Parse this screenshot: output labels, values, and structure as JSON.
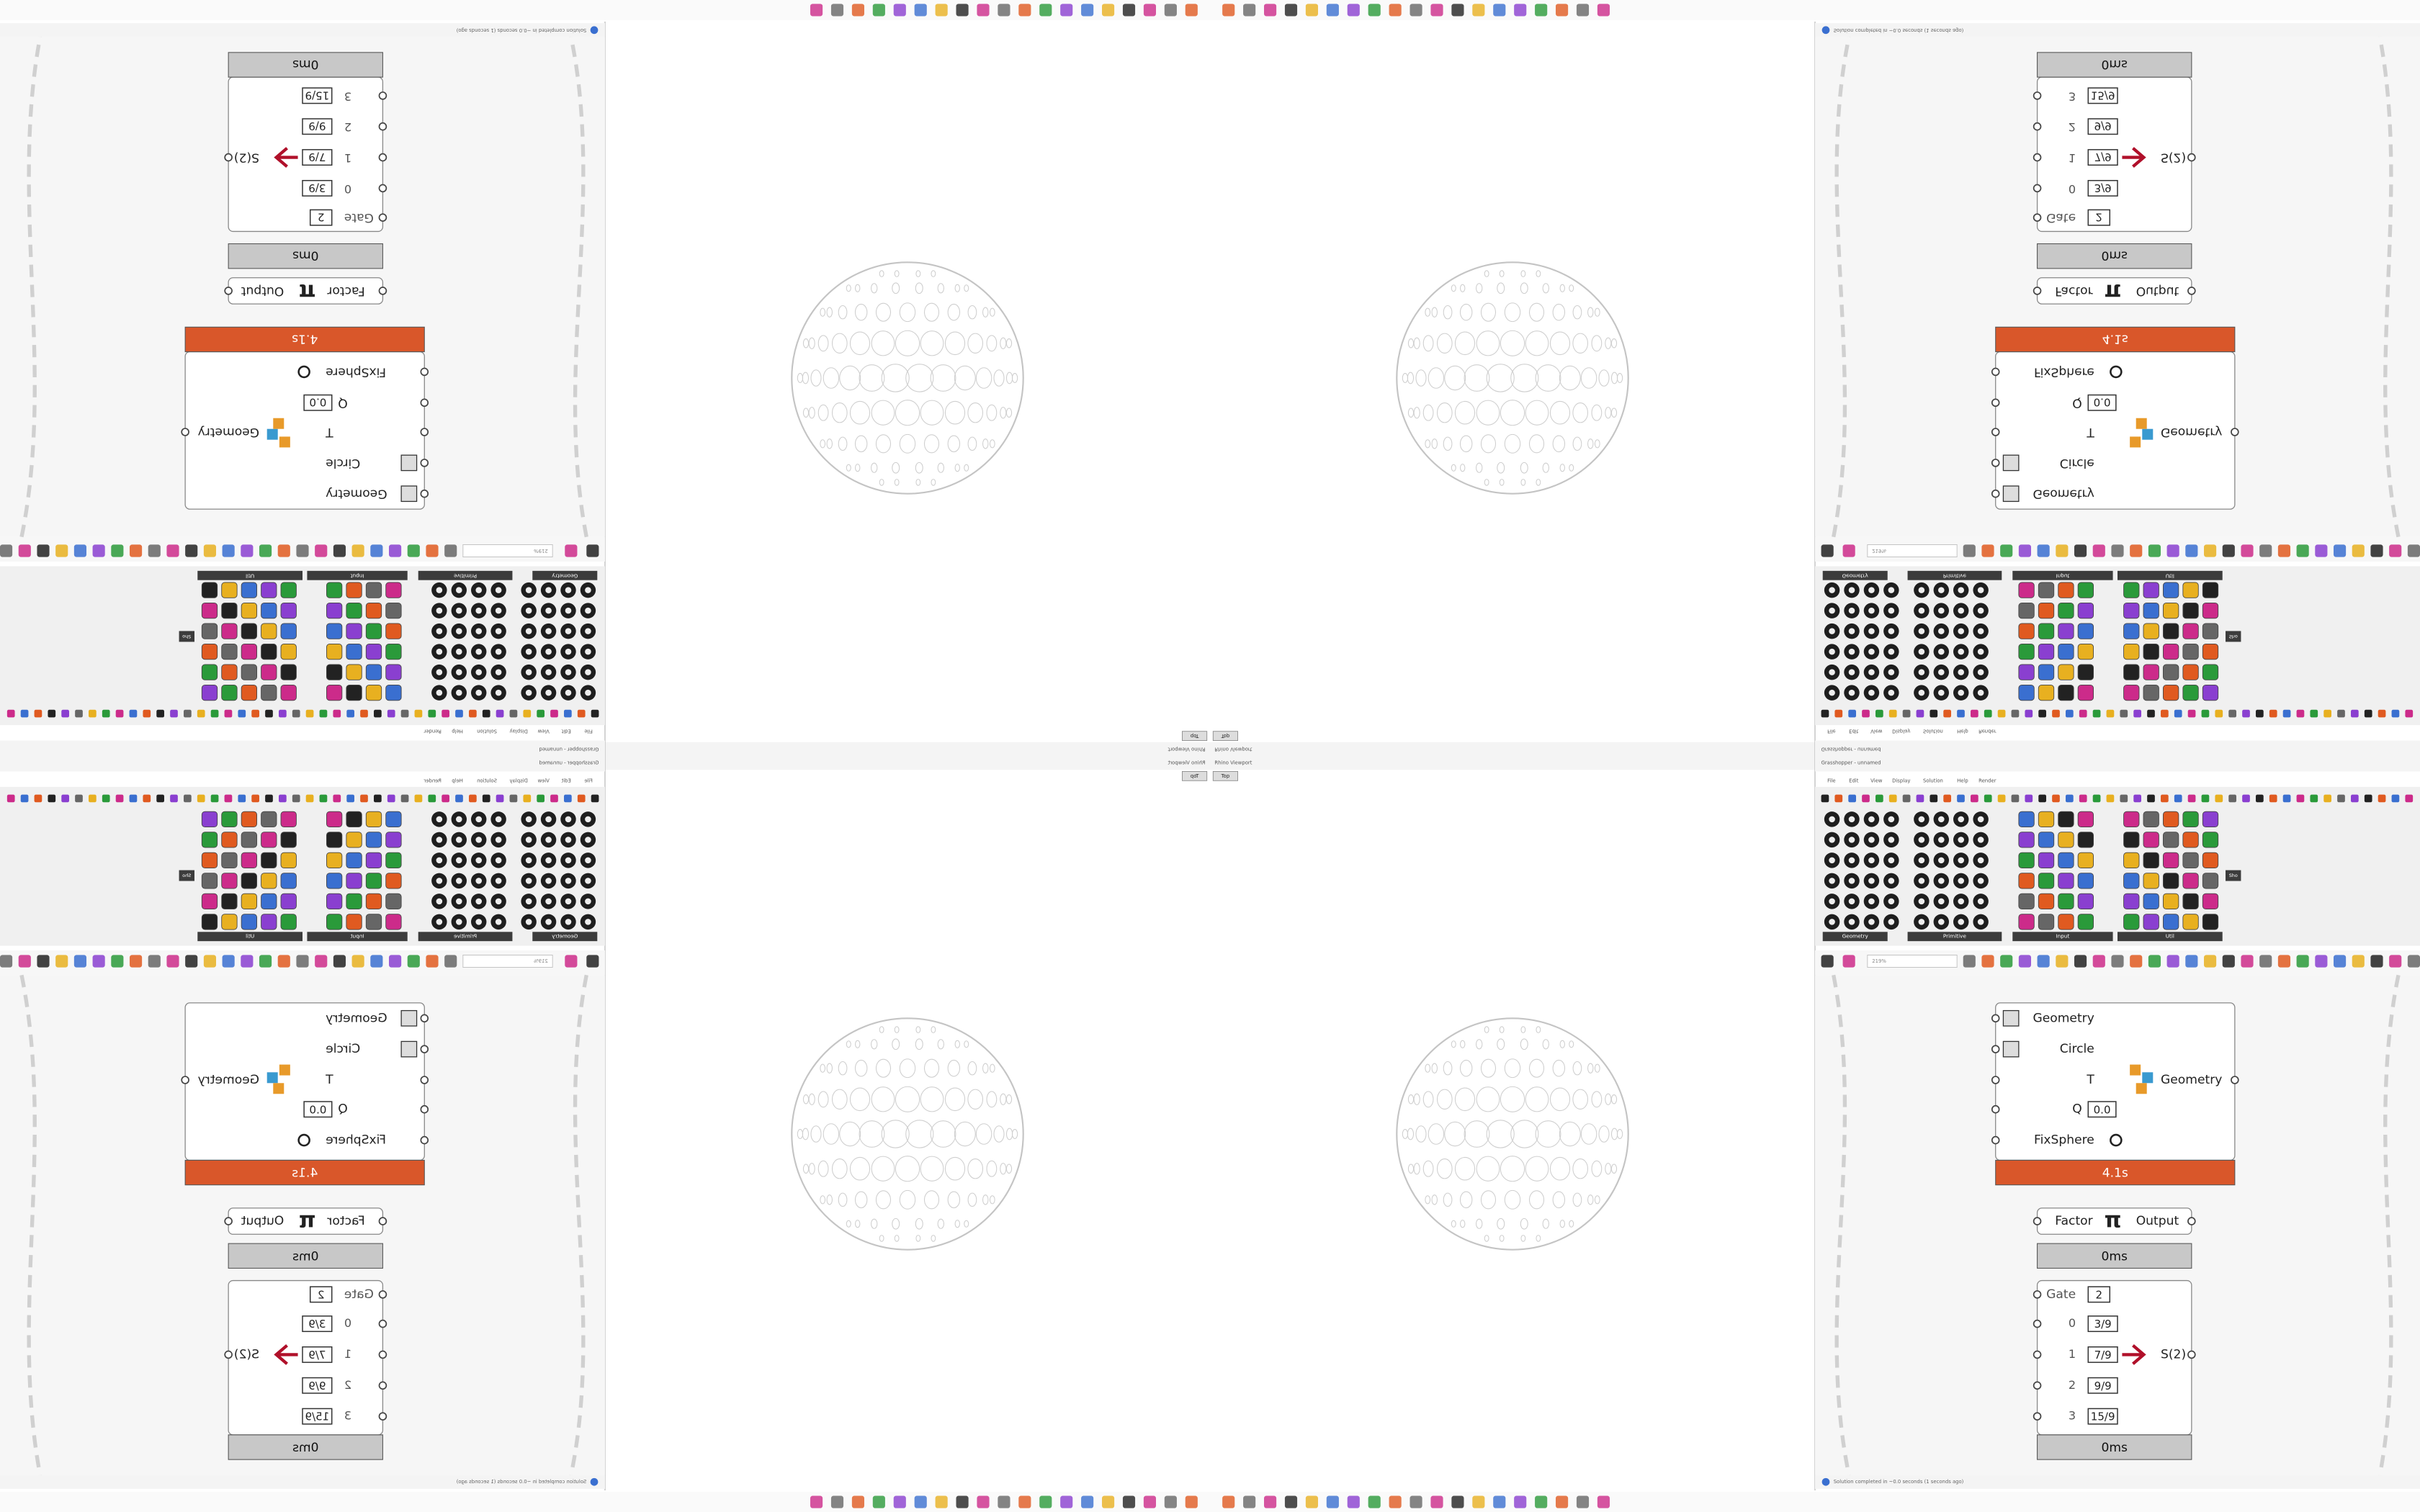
{
  "rhino_viewport": {
    "title": "Rhino Viewport",
    "view": "Top"
  },
  "grasshopper": {
    "title": "Grasshopper - unnamed",
    "menu": [
      "File",
      "Edit",
      "View",
      "Display",
      "Solution",
      "Help",
      "Render"
    ],
    "ribbon_groups": [
      "Geometry",
      "Primitive",
      "Input",
      "Util"
    ],
    "sidebar_label": "Sho",
    "zoom": "219%",
    "status": "Solution completed in ~0.0 seconds (1 seconds ago)"
  },
  "components": {
    "cluster": {
      "inputs": [
        "Geometry",
        "Circle",
        "T",
        "Q",
        "FixSphere"
      ],
      "q_value": "0.0",
      "output": "Geometry",
      "time": "4.1s"
    },
    "pi": {
      "input": "Factor",
      "symbol": "π",
      "output": "Output",
      "time": "0ms"
    },
    "gate": {
      "gate_label": "Gate",
      "gate_value": "2",
      "items": [
        {
          "index": "0",
          "value": "3/9"
        },
        {
          "index": "1",
          "value": "7/9"
        },
        {
          "index": "2",
          "value": "9/9"
        },
        {
          "index": "3",
          "value": "15/9"
        }
      ],
      "output": "S(2)",
      "time": "0ms"
    }
  }
}
